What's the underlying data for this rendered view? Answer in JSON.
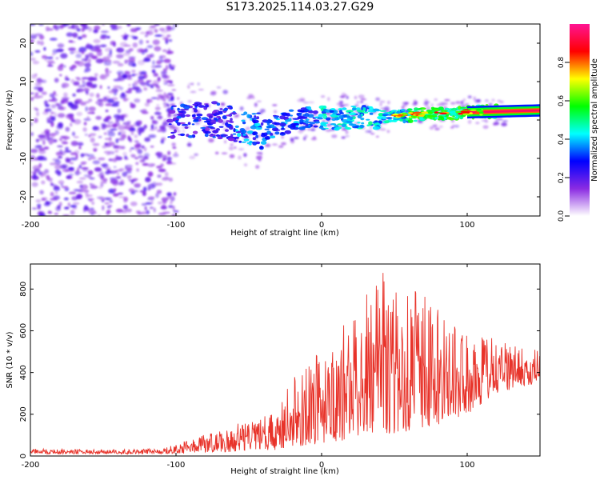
{
  "figure": {
    "title": "S173.2025.114.03.27.G29"
  },
  "chart_data": [
    {
      "type": "heatmap",
      "title": "S173.2025.114.03.27.G29",
      "xlabel": "Height of straight line (km)",
      "ylabel": "Frequency (Hz)",
      "xlim": [
        -200,
        150
      ],
      "ylim": [
        -25,
        25
      ],
      "x_ticks": [
        -200,
        -100,
        0,
        100
      ],
      "y_ticks": [
        -20,
        -10,
        0,
        10,
        20
      ],
      "colorbar": {
        "label": "Normalized spectral amplitude",
        "range": [
          0,
          1
        ],
        "ticks": [
          0.0,
          0.2,
          0.4,
          0.6,
          0.8
        ],
        "tick_labels": [
          "0.0",
          "0.2",
          "0.4",
          "0.6",
          "0.8"
        ],
        "colors": [
          "#ffffff",
          "#8a2be2",
          "#0000ff",
          "#00ffff",
          "#00ff00",
          "#ffff00",
          "#ff0000",
          "#ff1493"
        ]
      },
      "ridge": {
        "description_points": [
          {
            "x": -100,
            "y": -0.5
          },
          {
            "x": -80,
            "y": 0.5
          },
          {
            "x": -60,
            "y": -1
          },
          {
            "x": -40,
            "y": -3
          },
          {
            "x": -20,
            "y": 0
          },
          {
            "x": 0,
            "y": 0.5
          },
          {
            "x": 50,
            "y": 1
          },
          {
            "x": 100,
            "y": 2
          },
          {
            "x": 150,
            "y": 2.5
          }
        ],
        "peak_amplitude_region_x": [
          80,
          150
        ]
      }
    },
    {
      "type": "line",
      "xlabel": "Height of straight line (km)",
      "ylabel": "SNR (10 * v/v)",
      "xlim": [
        -200,
        150
      ],
      "ylim": [
        0,
        920
      ],
      "x_ticks": [
        -200,
        -100,
        0,
        100
      ],
      "y_ticks": [
        0,
        200,
        400,
        600,
        800
      ],
      "series": [
        {
          "color": "#e8332a",
          "envelope": [
            {
              "x": -200,
              "low": 10,
              "high": 35
            },
            {
              "x": -150,
              "low": 10,
              "high": 30
            },
            {
              "x": -110,
              "low": 10,
              "high": 35
            },
            {
              "x": -90,
              "low": 15,
              "high": 80
            },
            {
              "x": -70,
              "low": 20,
              "high": 130
            },
            {
              "x": -50,
              "low": 20,
              "high": 170
            },
            {
              "x": -30,
              "low": 30,
              "high": 220
            },
            {
              "x": -20,
              "low": 40,
              "high": 380
            },
            {
              "x": -10,
              "low": 50,
              "high": 420
            },
            {
              "x": 0,
              "low": 60,
              "high": 560
            },
            {
              "x": 20,
              "low": 80,
              "high": 650
            },
            {
              "x": 40,
              "low": 100,
              "high": 900
            },
            {
              "x": 60,
              "low": 120,
              "high": 850
            },
            {
              "x": 80,
              "low": 150,
              "high": 700
            },
            {
              "x": 100,
              "low": 200,
              "high": 620
            },
            {
              "x": 120,
              "low": 300,
              "high": 560
            },
            {
              "x": 150,
              "low": 350,
              "high": 520
            }
          ]
        }
      ]
    }
  ]
}
